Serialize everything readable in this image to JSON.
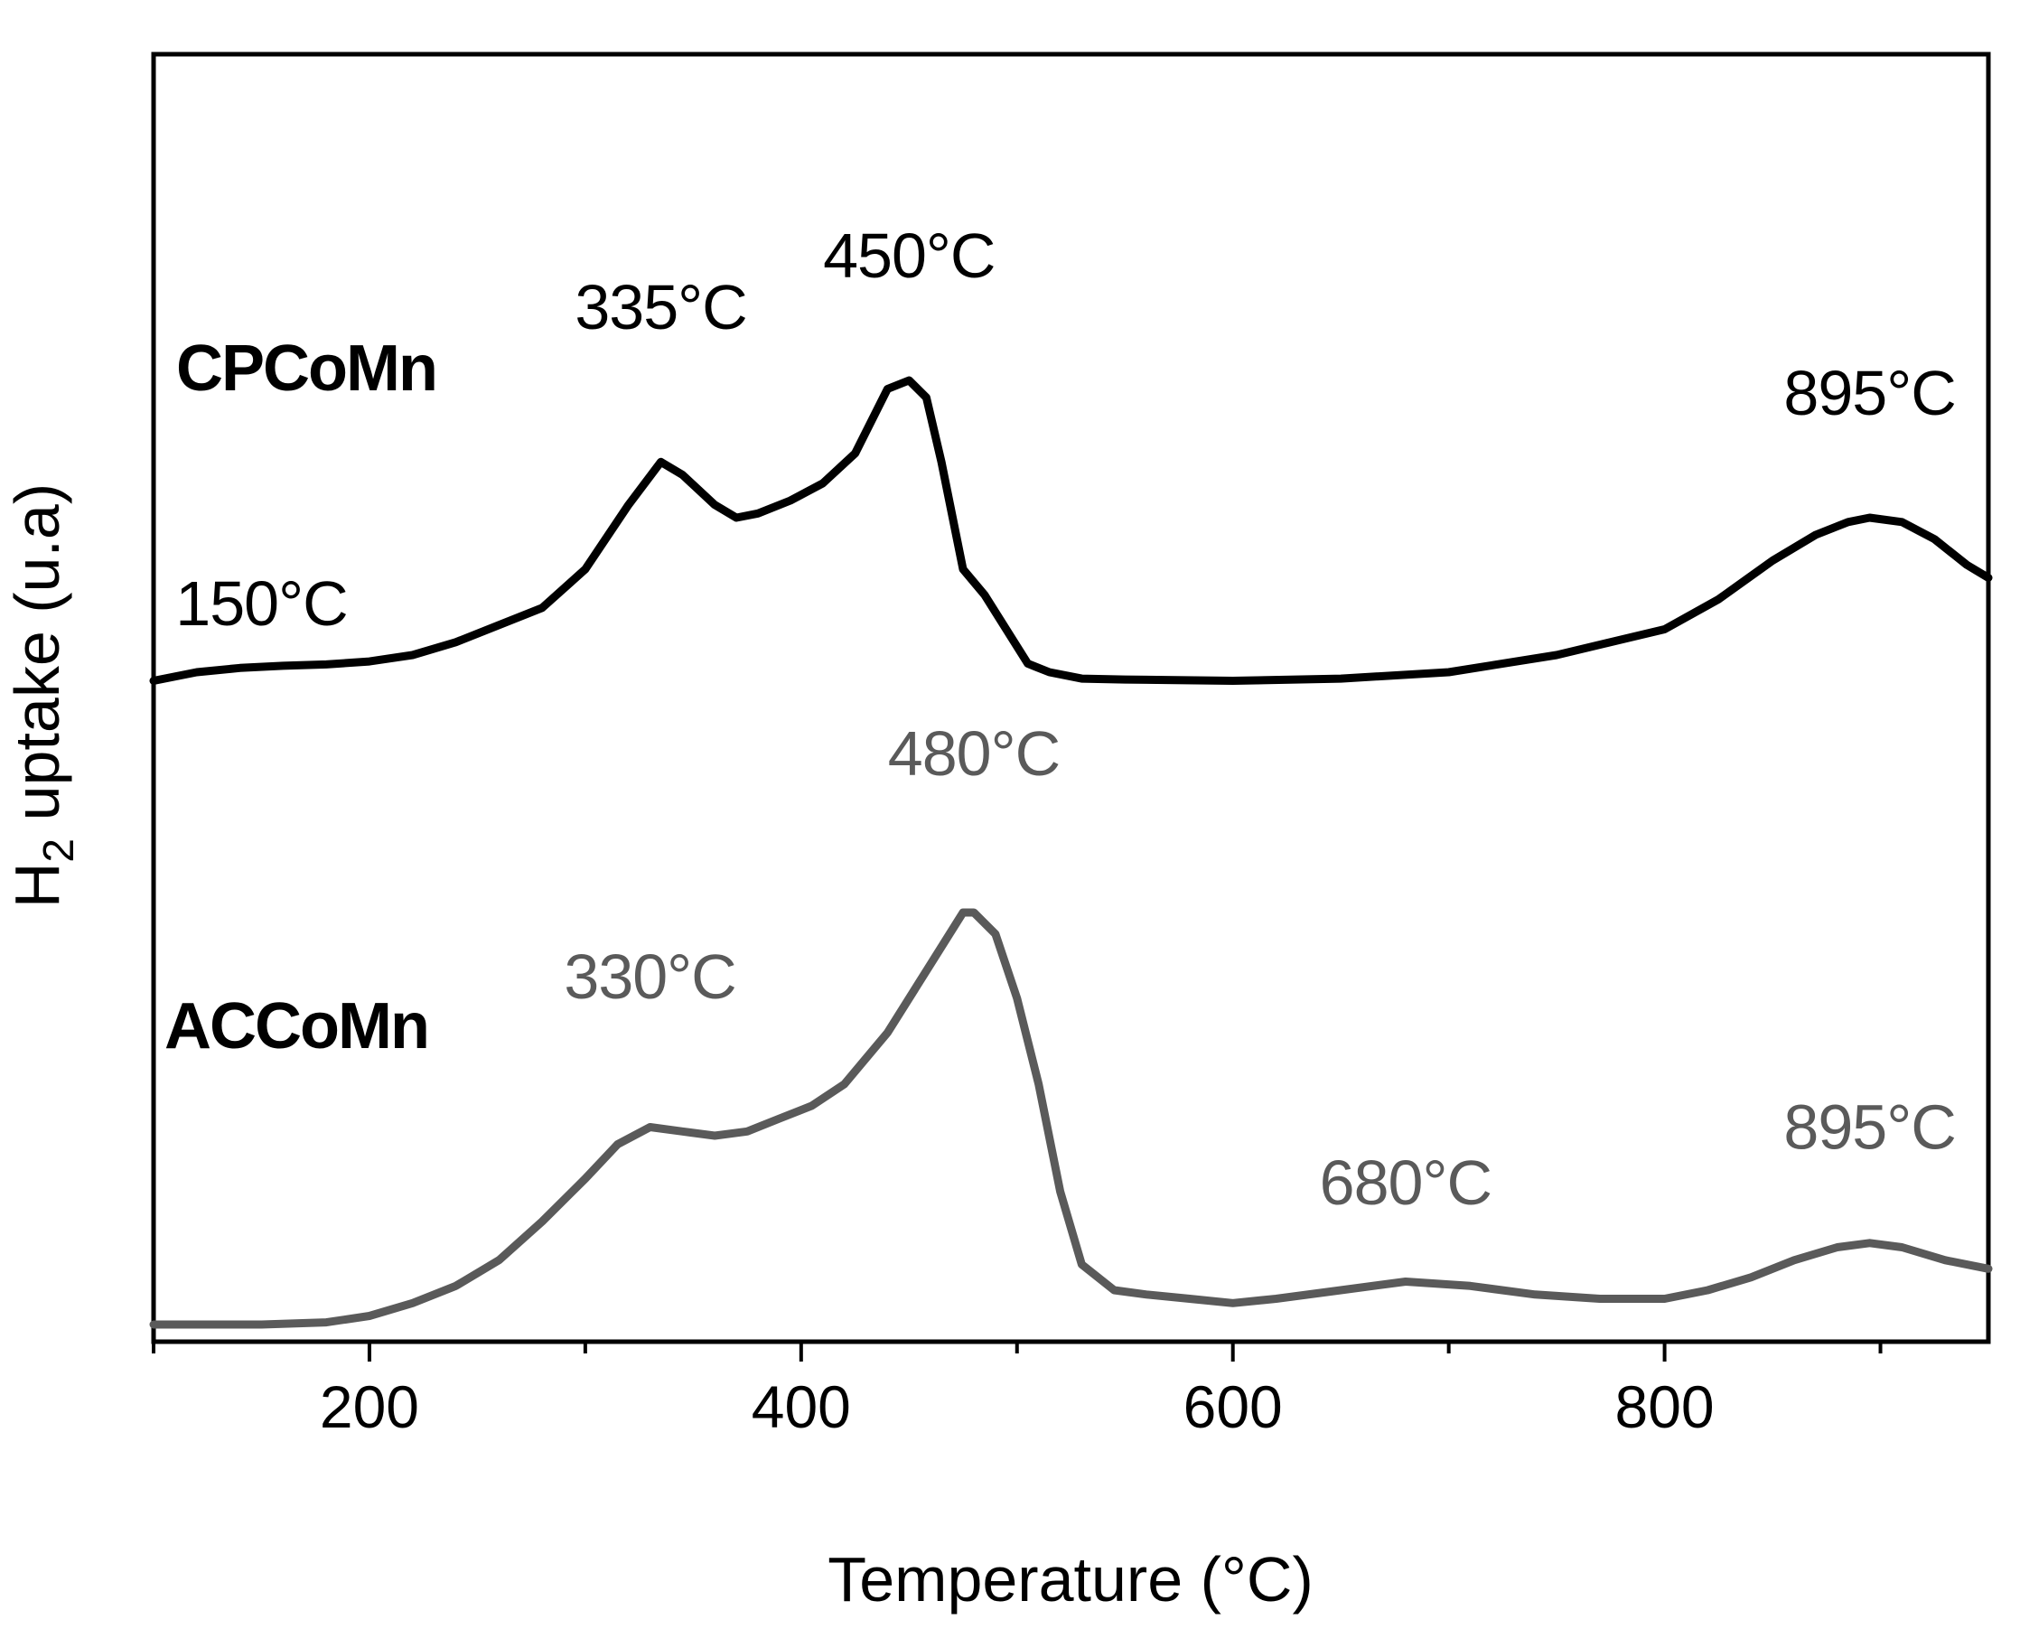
{
  "chart_data": {
    "type": "line",
    "xlabel": "Temperature (°C)",
    "ylabel": "H₂ uptake (u.a)",
    "ylabel_main": "H",
    "ylabel_sub": "2",
    "ylabel_rest": " uptake (u.a)",
    "xlim": [
      100,
      950
    ],
    "ylim": [
      0,
      3.0
    ],
    "x_ticks": [
      200,
      400,
      600,
      800
    ],
    "x_tick_labels": [
      "200",
      "400",
      "600",
      "800"
    ],
    "y_ticks_shown": false,
    "grid": false,
    "series": [
      {
        "name": "CPCoMn",
        "color": "#000000",
        "x": [
          100,
          120,
          140,
          160,
          180,
          200,
          220,
          240,
          260,
          280,
          300,
          320,
          335,
          345,
          360,
          370,
          380,
          395,
          410,
          425,
          440,
          450,
          458,
          465,
          475,
          485,
          495,
          505,
          515,
          530,
          550,
          600,
          650,
          700,
          750,
          800,
          825,
          850,
          870,
          885,
          895,
          910,
          925,
          940,
          950
        ],
        "y": [
          1.54,
          1.56,
          1.57,
          1.575,
          1.578,
          1.585,
          1.6,
          1.63,
          1.67,
          1.71,
          1.8,
          1.95,
          2.05,
          2.02,
          1.95,
          1.92,
          1.93,
          1.96,
          2.0,
          2.07,
          2.22,
          2.24,
          2.2,
          2.05,
          1.8,
          1.74,
          1.66,
          1.58,
          1.56,
          1.545,
          1.543,
          1.54,
          1.545,
          1.56,
          1.6,
          1.66,
          1.73,
          1.82,
          1.88,
          1.91,
          1.92,
          1.91,
          1.87,
          1.81,
          1.78
        ]
      },
      {
        "name": "ACCoMn",
        "color": "#5a5a5a",
        "x": [
          100,
          150,
          180,
          200,
          220,
          240,
          260,
          280,
          300,
          315,
          330,
          345,
          360,
          375,
          390,
          405,
          420,
          440,
          460,
          475,
          480,
          490,
          500,
          510,
          520,
          530,
          545,
          560,
          580,
          600,
          620,
          650,
          680,
          710,
          740,
          770,
          800,
          820,
          840,
          860,
          880,
          895,
          910,
          930,
          950
        ],
        "y": [
          0.04,
          0.04,
          0.045,
          0.06,
          0.09,
          0.13,
          0.19,
          0.28,
          0.38,
          0.46,
          0.5,
          0.49,
          0.48,
          0.49,
          0.52,
          0.55,
          0.6,
          0.72,
          0.88,
          1.0,
          1.0,
          0.95,
          0.8,
          0.6,
          0.35,
          0.18,
          0.12,
          0.11,
          0.1,
          0.09,
          0.1,
          0.12,
          0.14,
          0.13,
          0.11,
          0.1,
          0.1,
          0.12,
          0.15,
          0.19,
          0.22,
          0.23,
          0.22,
          0.19,
          0.17
        ]
      }
    ],
    "series_labels": [
      "CPCoMn",
      "ACCoMn"
    ],
    "annotations": [
      {
        "text": "150°C",
        "x": 150,
        "y": 1.67,
        "color": "#000000"
      },
      {
        "text": "335°C",
        "x": 335,
        "y": 2.36,
        "color": "#000000"
      },
      {
        "text": "450°C",
        "x": 450,
        "y": 2.48,
        "color": "#000000"
      },
      {
        "text": "895°C",
        "x": 895,
        "y": 2.16,
        "color": "#000000"
      },
      {
        "text": "480°C",
        "x": 480,
        "y": 1.32,
        "color": "#5a5a5a"
      },
      {
        "text": "330°C",
        "x": 330,
        "y": 0.8,
        "color": "#5a5a5a"
      },
      {
        "text": "680°C",
        "x": 680,
        "y": 0.32,
        "color": "#5a5a5a"
      },
      {
        "text": "895°C",
        "x": 895,
        "y": 0.45,
        "color": "#5a5a5a"
      }
    ]
  }
}
